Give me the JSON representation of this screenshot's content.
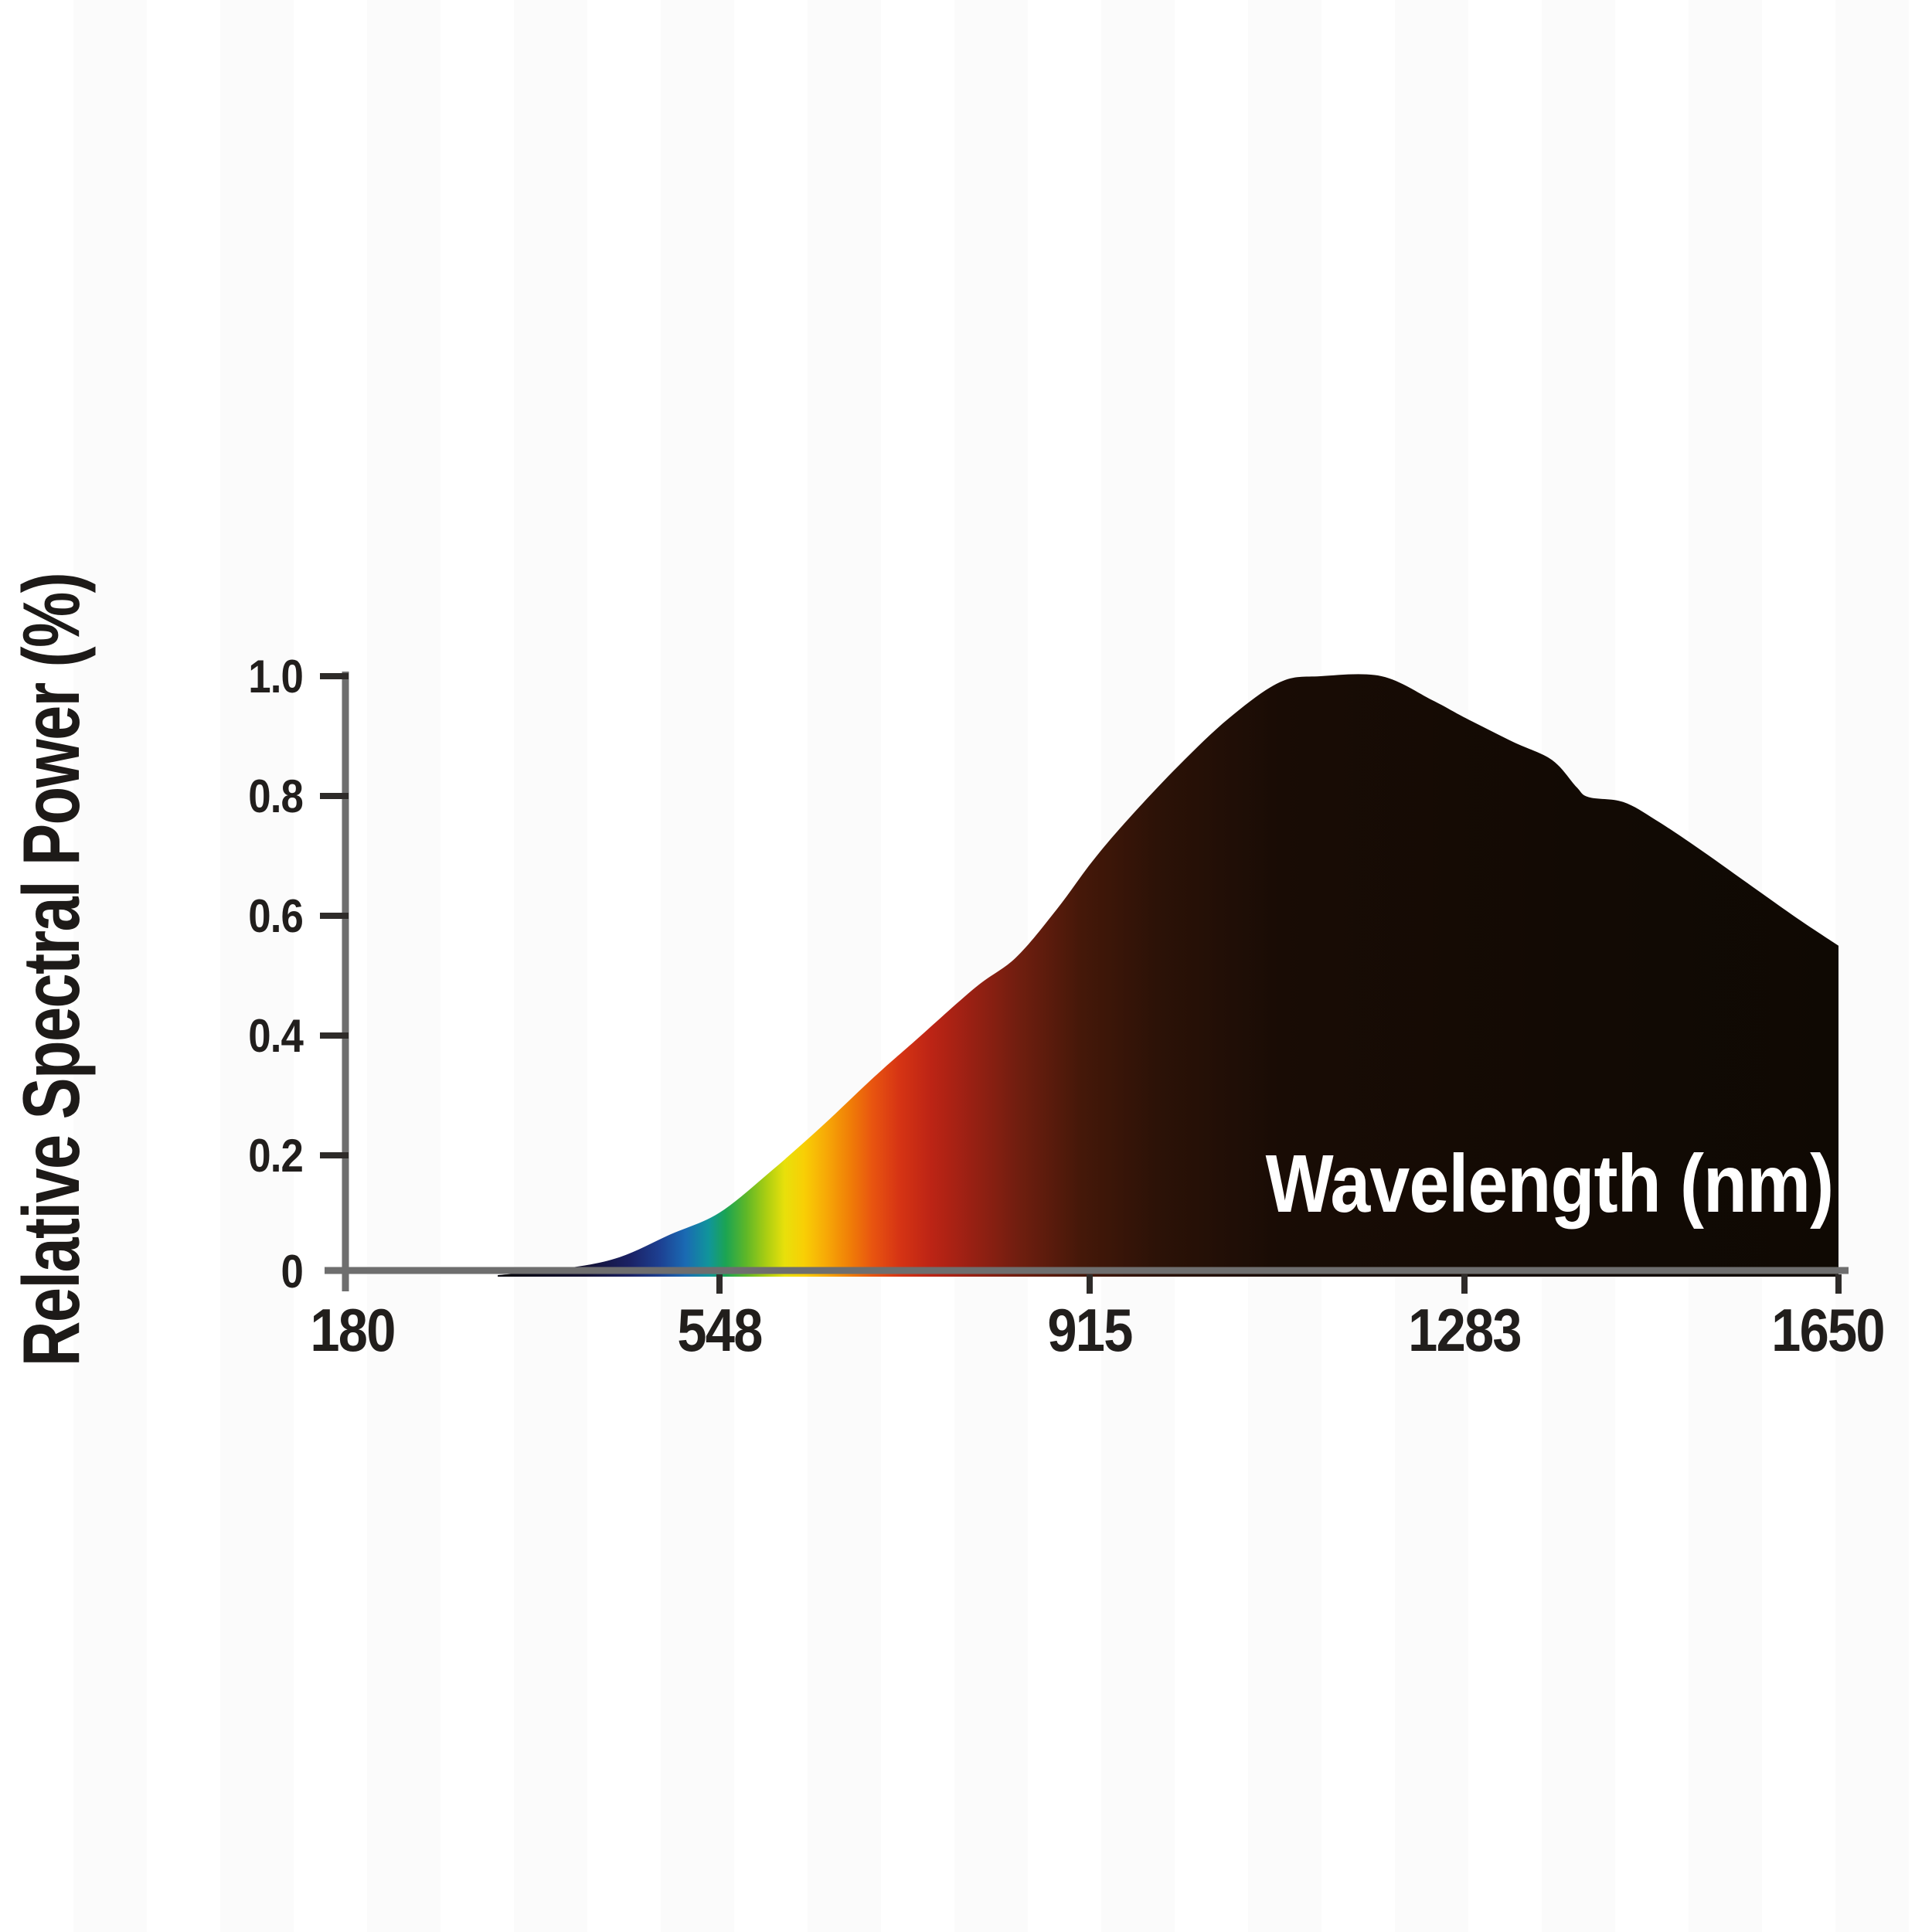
{
  "page": {
    "background_color": "#ffffff",
    "description": "Spectral power distribution area chart on white background"
  },
  "chart_data": {
    "type": "area",
    "title": "",
    "xlabel": "Wavelength (nm)",
    "ylabel": "Relative Spectral Power (%)",
    "xlabel_placement": "inside plot area, white text on black fill, lower right",
    "ylabel_placement": "rotated 90 degrees, left of y axis",
    "xlim": [
      180,
      1650
    ],
    "ylim": [
      0,
      1.0
    ],
    "grid": false,
    "legend": "none",
    "x_tick_labels": [
      "180",
      "548",
      "915",
      "1283",
      "1650"
    ],
    "x_tick_values": [
      180,
      548,
      915,
      1283,
      1650
    ],
    "y_tick_labels": [
      "1.0",
      "0.8",
      "0.6",
      "0.4",
      "0.2",
      "0"
    ],
    "y_tick_values": [
      1.0,
      0.8,
      0.6,
      0.4,
      0.2,
      0
    ],
    "axis_color": "#6e6e6e",
    "tick_color": "#2e2b29",
    "tick_label_color": "#211e1c",
    "series": [
      {
        "name": "Relative spectral power",
        "x": [
          330,
          400,
          450,
          500,
          548,
          600,
          650,
          700,
          740,
          800,
          840,
          880,
          915,
          950,
          1000,
          1050,
          1100,
          1140,
          1200,
          1250,
          1283,
          1330,
          1368,
          1392,
          1404,
          1438,
          1470,
          1510,
          1560,
          1610,
          1650
        ],
        "y": [
          0.0,
          0.012,
          0.03,
          0.068,
          0.104,
          0.175,
          0.25,
          0.33,
          0.39,
          0.48,
          0.53,
          0.61,
          0.69,
          0.76,
          0.85,
          0.93,
          0.99,
          1.0,
          1.0,
          0.96,
          0.93,
          0.89,
          0.86,
          0.815,
          0.798,
          0.79,
          0.76,
          0.715,
          0.655,
          0.595,
          0.55
        ]
      }
    ],
    "fill_style": "horizontal visible-spectrum rainbow gradient (violet to red) fading into near-black for infrared",
    "area_gradient": [
      {
        "wl": 330,
        "color": "#06060c"
      },
      {
        "wl": 415,
        "color": "#121031"
      },
      {
        "wl": 460,
        "color": "#1b2164"
      },
      {
        "wl": 490,
        "color": "#1d4092"
      },
      {
        "wl": 515,
        "color": "#1a6ab3"
      },
      {
        "wl": 538,
        "color": "#10959b"
      },
      {
        "wl": 555,
        "color": "#1ba452"
      },
      {
        "wl": 575,
        "color": "#5eb728"
      },
      {
        "wl": 595,
        "color": "#abce12"
      },
      {
        "wl": 613,
        "color": "#e8e00b"
      },
      {
        "wl": 632,
        "color": "#f8cf05"
      },
      {
        "wl": 655,
        "color": "#f7a706"
      },
      {
        "wl": 678,
        "color": "#f07d07"
      },
      {
        "wl": 700,
        "color": "#e85410"
      },
      {
        "wl": 726,
        "color": "#d63414"
      },
      {
        "wl": 758,
        "color": "#bc2415"
      },
      {
        "wl": 798,
        "color": "#982013"
      },
      {
        "wl": 845,
        "color": "#6f1e0f"
      },
      {
        "wl": 905,
        "color": "#451809"
      },
      {
        "wl": 980,
        "color": "#2c1207"
      },
      {
        "wl": 1100,
        "color": "#190c05"
      },
      {
        "wl": 1400,
        "color": "#120a04"
      },
      {
        "wl": 1650,
        "color": "#0f0903"
      }
    ],
    "annotations": [
      "Curve rises from ~0 near 330 nm through the visible band, peaks at 1.0 near 1100-1200 nm, dips (step) near 1400 nm, then declines to ~0.55 at 1650 nm where the fill ends with a vertical edge"
    ]
  }
}
